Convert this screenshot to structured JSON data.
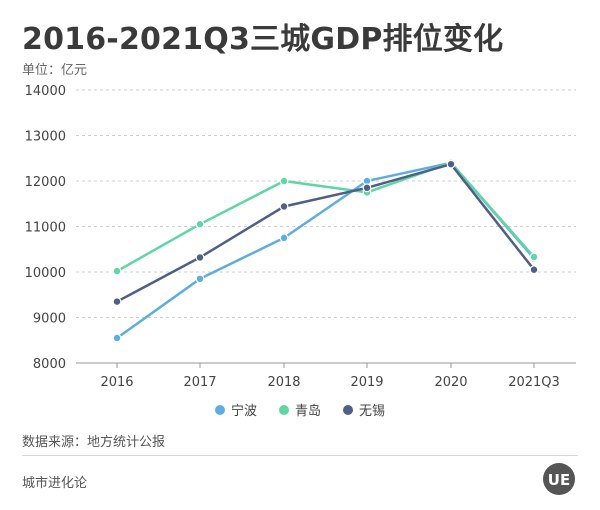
{
  "header": {
    "title": "2016-2021Q3三城GDP排位变化",
    "unit": "单位：亿元"
  },
  "footer": {
    "source": "数据来源：地方统计公报",
    "brand": "城市进化论",
    "logo_text": "UE"
  },
  "chart_data": {
    "type": "line",
    "title": "2016-2021Q3三城GDP排位变化",
    "ylabel": "单位：亿元",
    "categories": [
      "2016",
      "2017",
      "2018",
      "2019",
      "2020",
      "2021Q3"
    ],
    "ylim": [
      8000,
      14000
    ],
    "yticks": [
      8000,
      9000,
      10000,
      11000,
      12000,
      13000,
      14000
    ],
    "grid": true,
    "legend_position": "bottom",
    "series": [
      {
        "name": "宁波",
        "color": "#5dade2",
        "values": [
          8550,
          9850,
          10750,
          12000,
          12400,
          10300
        ]
      },
      {
        "name": "青岛",
        "color": "#5fd6a4",
        "values": [
          10020,
          11050,
          12000,
          11750,
          12400,
          10330
        ]
      },
      {
        "name": "无锡",
        "color": "#4f5f86",
        "values": [
          9350,
          10320,
          11440,
          11850,
          12370,
          10050
        ]
      }
    ]
  }
}
